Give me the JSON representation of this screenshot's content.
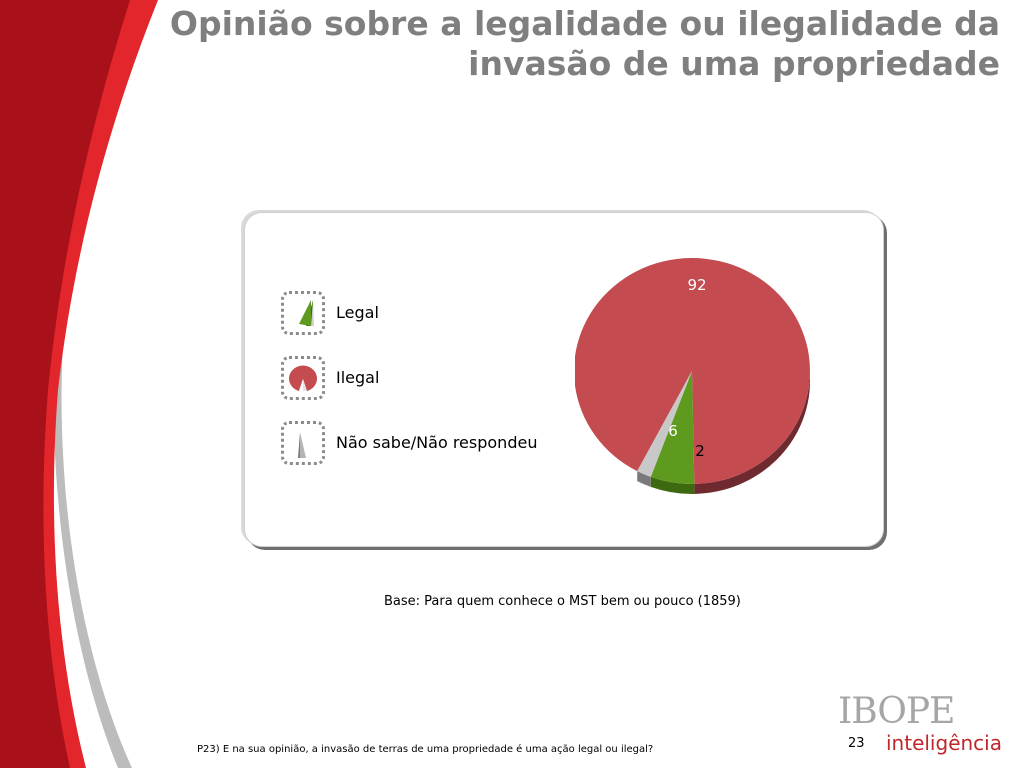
{
  "colors": {
    "ilegal": "#c44b50",
    "ilegal_side": "#6e2a2e",
    "legal": "#5e9a1e",
    "legal_side": "#3d6a10",
    "nsnr": "#c8c8c8",
    "nsnr_side": "#7a7a7a",
    "title": "#7f7f7f",
    "swoosh_dark": "#a8111a",
    "swoosh_bright": "#e3262c",
    "swoosh_gray": "#bcbcbc"
  },
  "slide": {
    "title_line1": "Opinião sobre a legalidade ou ilegalidade da",
    "title_line2": "invasão de uma propriedade",
    "base_note": "Base: Para quem conhece o MST bem ou pouco (1859)",
    "footnote": "P23) E na sua opinião, a invasão de terras de uma propriedade é uma ação legal ou ilegal?",
    "page_number": "23",
    "logo_top": "IBOPE",
    "logo_bottom": "inteligência"
  },
  "chart_data": {
    "type": "pie",
    "title": "",
    "slices": [
      {
        "label": "Ilegal",
        "value": 92,
        "color": "#c44b50"
      },
      {
        "label": "Legal",
        "value": 6,
        "color": "#5e9a1e"
      },
      {
        "label": "Não sabe/Não respondeu",
        "value": 2,
        "color": "#c8c8c8"
      }
    ],
    "legend": [
      "Legal",
      "Ilegal",
      "Não sabe/Não respondeu"
    ],
    "legend_placement": "left",
    "three_d": true
  }
}
